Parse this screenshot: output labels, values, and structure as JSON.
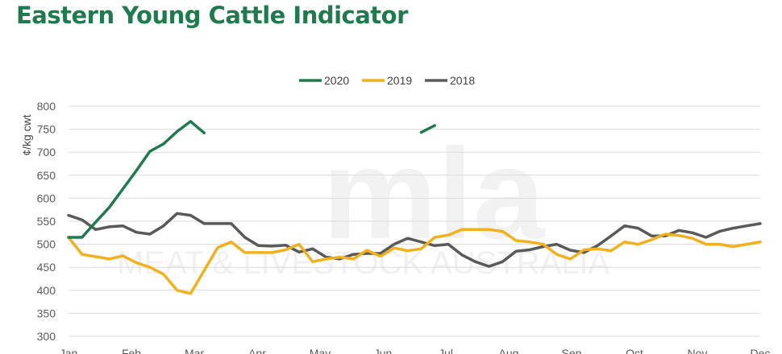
{
  "page": {
    "title": "Eastern Young Cattle Indicator",
    "title_color": "#1f7a4d"
  },
  "watermark": {
    "logo": "mla",
    "text": "MEAT & LIVESTOCK AUSTRALIA"
  },
  "chart_data": {
    "type": "line",
    "title": "Eastern Young Cattle Indicator",
    "ylabel": "¢/kg cwt",
    "xlabel": "",
    "ylim": [
      300,
      800
    ],
    "yticks": [
      300,
      350,
      400,
      450,
      500,
      550,
      600,
      650,
      700,
      750,
      800
    ],
    "x_tick_labels": [
      "Jan",
      "Feb",
      "Mar",
      "Apr",
      "May",
      "Jun",
      "Jul",
      "Aug",
      "Sep",
      "Oct",
      "Nov",
      "Dec"
    ],
    "x_points": 52,
    "x_unit": "week of year",
    "grid": true,
    "legend_position": "top-center",
    "series": [
      {
        "name": "2020",
        "color": "#1f7a4d",
        "values": [
          515,
          515,
          548,
          580,
          620,
          660,
          702,
          718,
          745,
          767,
          742,
          null,
          null,
          null,
          null,
          null,
          null,
          null,
          null,
          null,
          null,
          null,
          null,
          null,
          null,
          null,
          743,
          758,
          null,
          null,
          null,
          null,
          null,
          null,
          null,
          null,
          null,
          null,
          null,
          null,
          null,
          null,
          null,
          null,
          null,
          null,
          null,
          null,
          null,
          null,
          null,
          null
        ]
      },
      {
        "name": "2019",
        "color": "#f2b01e",
        "values": [
          515,
          478,
          473,
          468,
          475,
          460,
          450,
          435,
          400,
          393,
          443,
          493,
          505,
          482,
          482,
          482,
          488,
          500,
          462,
          468,
          472,
          468,
          487,
          474,
          492,
          486,
          490,
          515,
          520,
          532,
          532,
          532,
          528,
          508,
          505,
          500,
          478,
          468,
          488,
          490,
          486,
          505,
          500,
          510,
          522,
          519,
          513,
          500,
          500,
          495,
          500,
          505
        ]
      },
      {
        "name": "2018",
        "color": "#595959",
        "values": [
          563,
          553,
          532,
          538,
          540,
          526,
          522,
          540,
          567,
          563,
          545,
          545,
          545,
          515,
          497,
          496,
          498,
          483,
          490,
          472,
          468,
          478,
          480,
          480,
          500,
          513,
          505,
          497,
          500,
          477,
          462,
          452,
          462,
          485,
          488,
          495,
          500,
          487,
          482,
          497,
          518,
          540,
          535,
          518,
          518,
          530,
          525,
          515,
          528,
          535,
          540,
          545
        ]
      }
    ]
  }
}
